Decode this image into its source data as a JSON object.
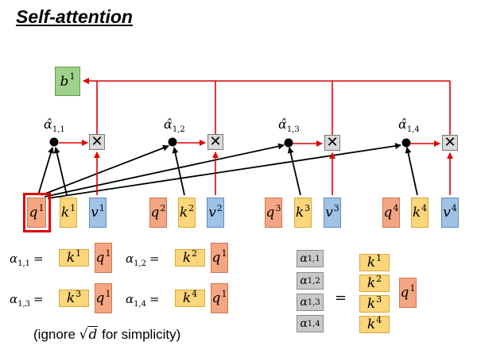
{
  "title": "Self-attention",
  "output": {
    "base": "b",
    "sup": "1"
  },
  "query_vectors": [
    {
      "base": "q",
      "sup": "1"
    },
    {
      "base": "q",
      "sup": "2"
    },
    {
      "base": "q",
      "sup": "3"
    },
    {
      "base": "q",
      "sup": "4"
    }
  ],
  "key_vectors": [
    {
      "base": "k",
      "sup": "1"
    },
    {
      "base": "k",
      "sup": "2"
    },
    {
      "base": "k",
      "sup": "3"
    },
    {
      "base": "k",
      "sup": "4"
    }
  ],
  "value_vectors": [
    {
      "base": "v",
      "sup": "1"
    },
    {
      "base": "v",
      "sup": "2"
    },
    {
      "base": "v",
      "sup": "3"
    },
    {
      "base": "v",
      "sup": "4"
    }
  ],
  "attention_scores": [
    {
      "base": "α̂",
      "sub": "1,1"
    },
    {
      "base": "α̂",
      "sub": "1,2"
    },
    {
      "base": "α̂",
      "sub": "1,3"
    },
    {
      "base": "α̂",
      "sub": "1,4"
    }
  ],
  "multiply_symbol": "✕",
  "equations": [
    {
      "base": "α",
      "sub": "1,1",
      "eq": "=",
      "k": {
        "base": "k",
        "sup": "1"
      },
      "q": {
        "base": "q",
        "sup": "1"
      }
    },
    {
      "base": "α",
      "sub": "1,2",
      "eq": "=",
      "k": {
        "base": "k",
        "sup": "2"
      },
      "q": {
        "base": "q",
        "sup": "1"
      }
    },
    {
      "base": "α",
      "sub": "1,3",
      "eq": "=",
      "k": {
        "base": "k",
        "sup": "3"
      },
      "q": {
        "base": "q",
        "sup": "1"
      }
    },
    {
      "base": "α",
      "sub": "1,4",
      "eq": "=",
      "k": {
        "base": "k",
        "sup": "4"
      },
      "q": {
        "base": "q",
        "sup": "1"
      }
    }
  ],
  "matrix_form": {
    "alphas": [
      {
        "base": "α",
        "sub": "1,1"
      },
      {
        "base": "α",
        "sub": "1,2"
      },
      {
        "base": "α",
        "sub": "1,3"
      },
      {
        "base": "α",
        "sub": "1,4"
      }
    ],
    "eq": "=",
    "keys": [
      {
        "base": "k",
        "sup": "1"
      },
      {
        "base": "k",
        "sup": "2"
      },
      {
        "base": "k",
        "sup": "3"
      },
      {
        "base": "k",
        "sup": "4"
      }
    ],
    "query": {
      "base": "q",
      "sup": "1"
    }
  },
  "note": {
    "before": "(ignore ",
    "root": "√",
    "var": "d",
    "after": " for simplicity)"
  },
  "colors": {
    "query": "#f4a582",
    "key": "#fbd67a",
    "value": "#9fc2e6",
    "output": "#9fd18a",
    "score": "#c8c8c8",
    "arrow_red": "#e00000",
    "highlight": "#e00000"
  }
}
